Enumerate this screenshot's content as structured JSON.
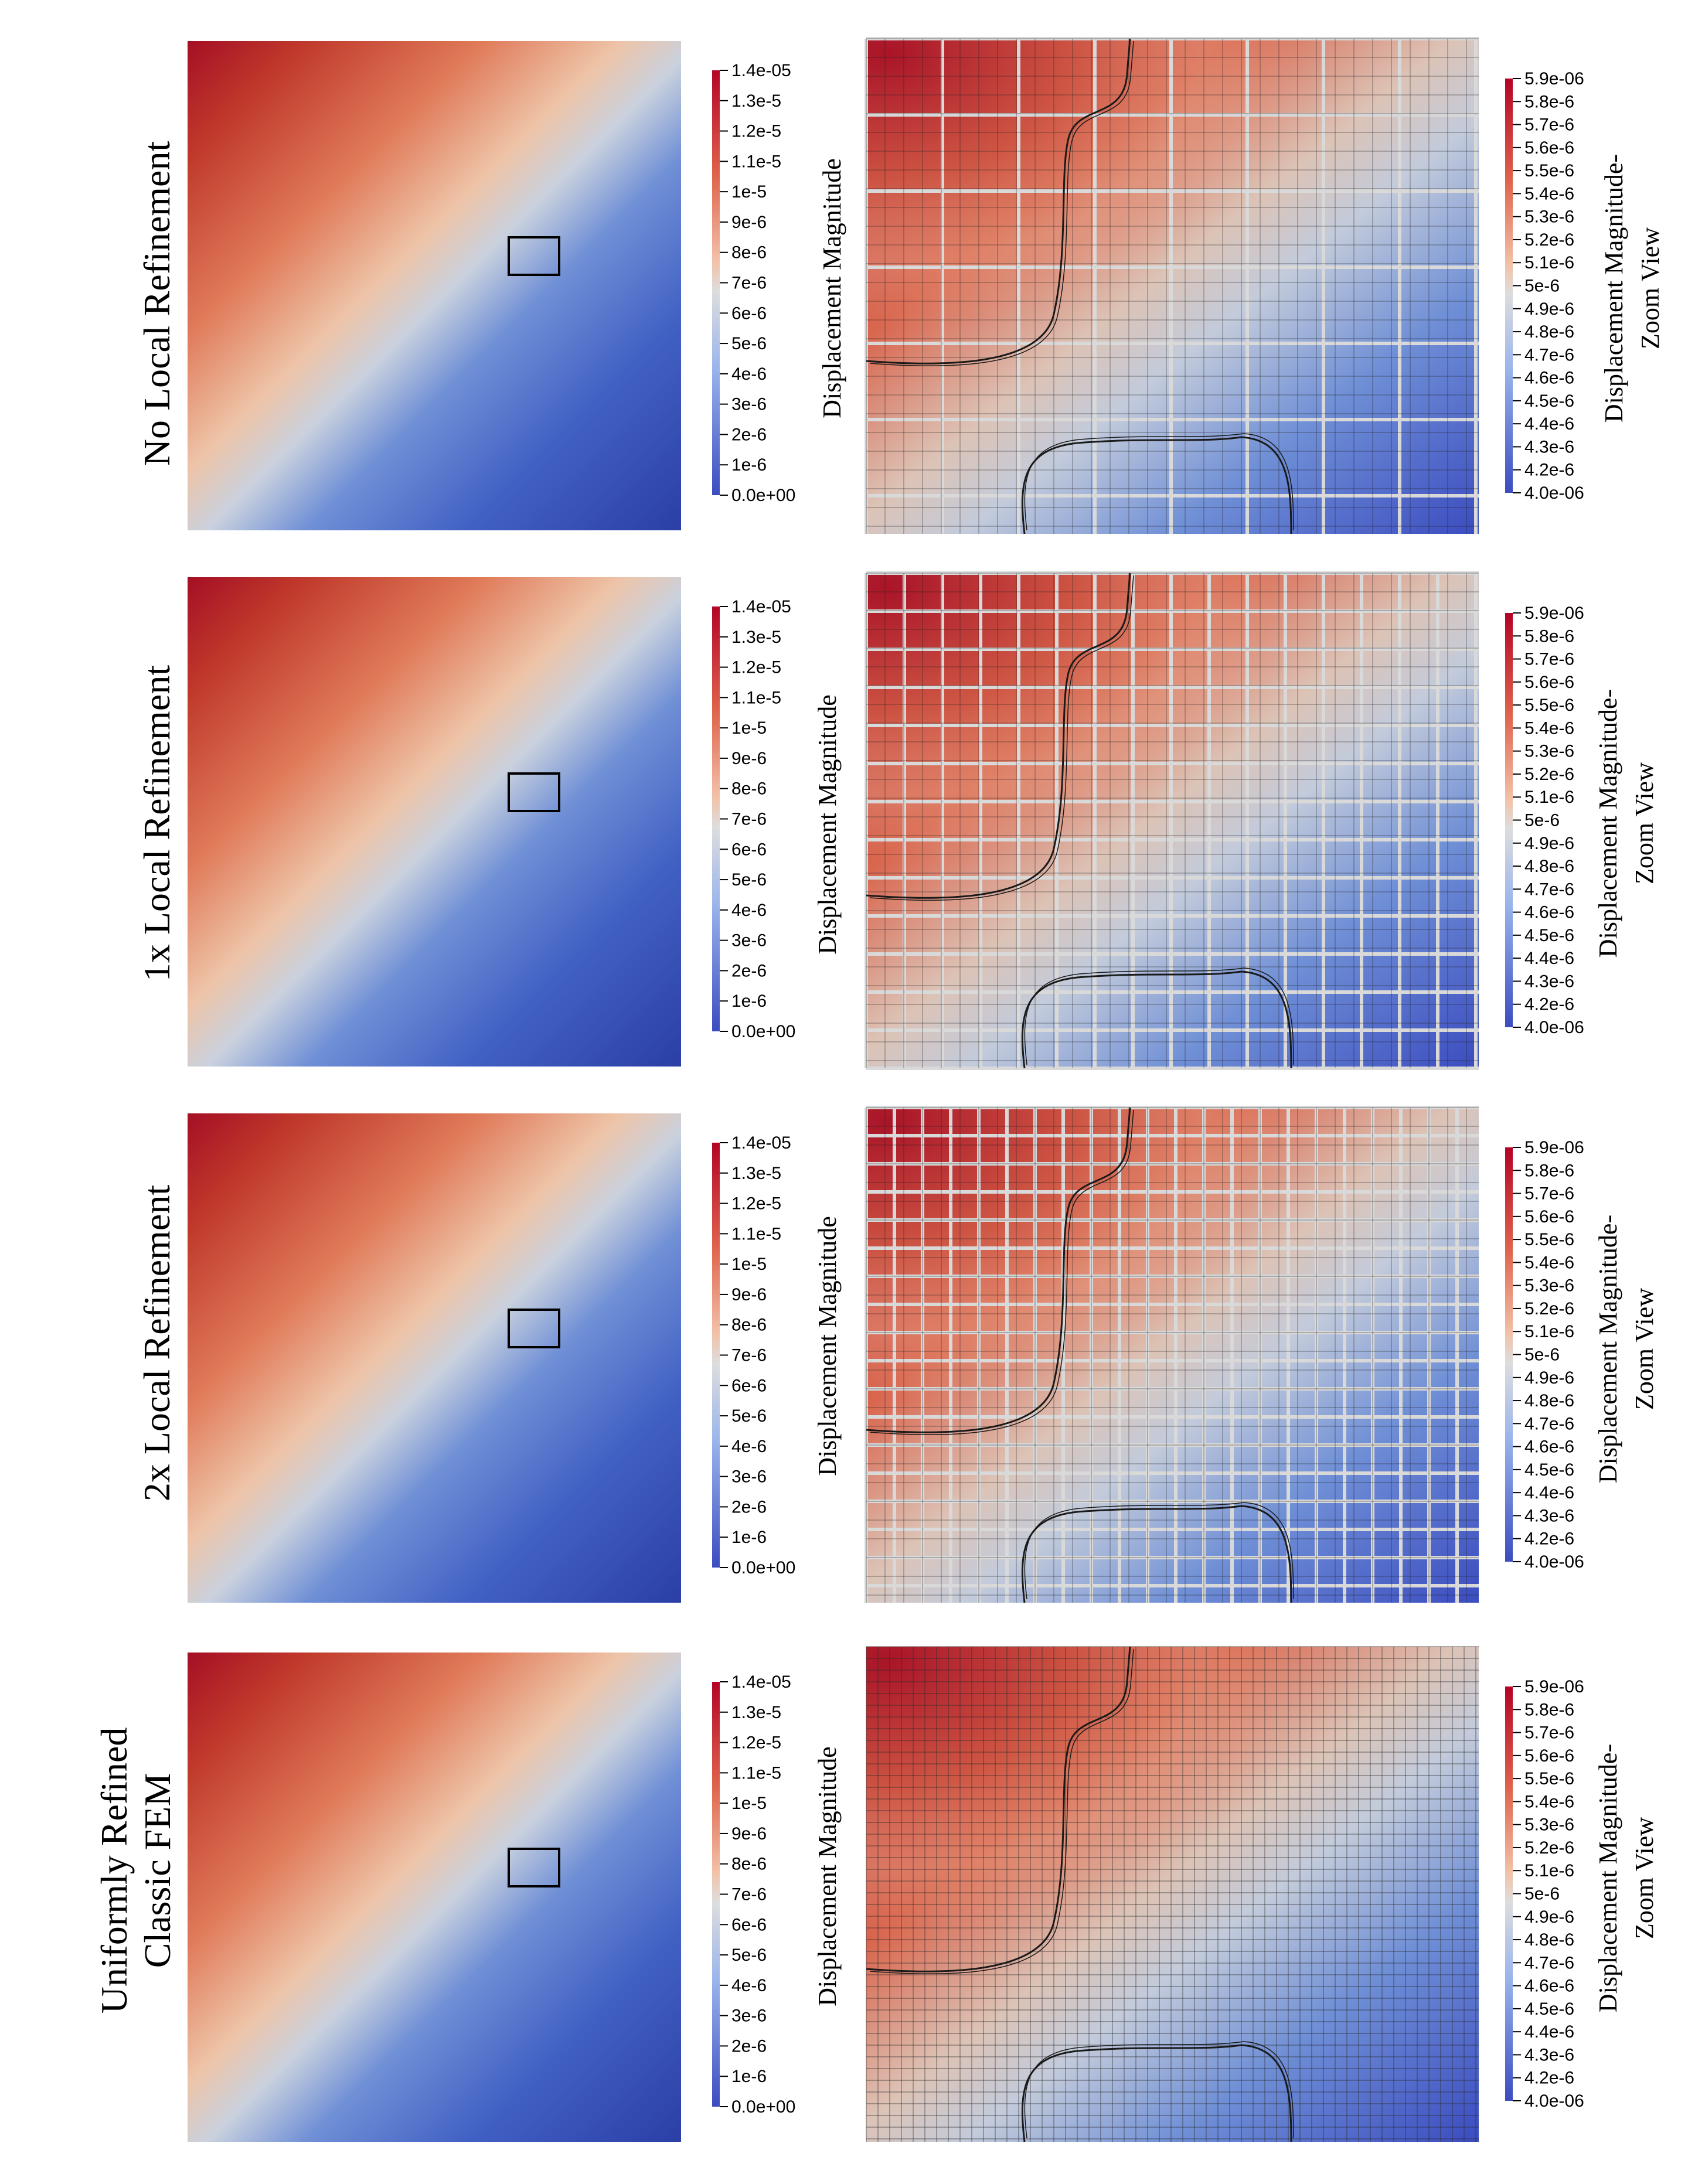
{
  "figure": {
    "main_colorbar": {
      "title": "Displacement Magnitude",
      "ticks": [
        "1.4e-05",
        "1.3e-5",
        "1.2e-5",
        "1.1e-5",
        "1e-5",
        "9e-6",
        "8e-6",
        "7e-6",
        "6e-6",
        "5e-6",
        "4e-6",
        "3e-6",
        "2e-6",
        "1e-6",
        "0.0e+00"
      ],
      "min": 0.0,
      "max": 1.4e-05
    },
    "zoom_colorbar": {
      "title_line1": "Displacement Magnitude-",
      "title_line2": "Zoom View",
      "ticks": [
        "5.9e-06",
        "5.8e-6",
        "5.7e-6",
        "5.6e-6",
        "5.5e-6",
        "5.4e-6",
        "5.3e-6",
        "5.2e-6",
        "5.1e-6",
        "5e-6",
        "4.9e-6",
        "4.8e-6",
        "4.7e-6",
        "4.6e-6",
        "4.5e-6",
        "4.4e-6",
        "4.3e-6",
        "4.2e-6",
        "4.0e-06"
      ],
      "min": 4e-06,
      "max": 5.9e-06
    },
    "colormap": {
      "high": "#b40426",
      "mid": "#dddddd",
      "low": "#3b4cc0"
    },
    "rows": [
      {
        "label_lines": [
          "No Local Refinement"
        ],
        "mesh": "coarse"
      },
      {
        "label_lines": [
          "1x Local Refinement"
        ],
        "mesh": "refined-1x"
      },
      {
        "label_lines": [
          "2x Local Refinement"
        ],
        "mesh": "refined-2x"
      },
      {
        "label_lines": [
          "Uniformly Refined",
          "Classic FEM"
        ],
        "mesh": "uniform"
      }
    ]
  }
}
